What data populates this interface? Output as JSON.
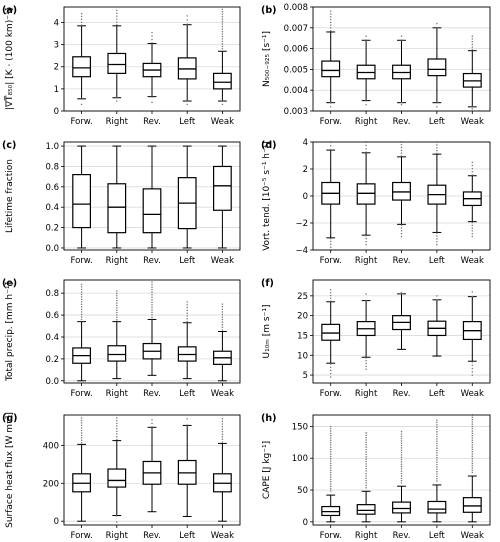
{
  "categories": [
    "Forw.",
    "Right",
    "Rev.",
    "Left",
    "Weak"
  ],
  "chart_data": [
    {
      "type": "boxplot",
      "panel_label": "(a)",
      "ylabel": "|∇T̅₈₅₀| [K · (100 km)⁻¹]",
      "ylim": [
        0,
        4.7
      ],
      "yticks": [
        0,
        1,
        2,
        3,
        4
      ],
      "ytick_labels": [
        "0",
        "1",
        "2",
        "3",
        "4"
      ],
      "grid": true,
      "boxes": [
        {
          "whislo": 0.55,
          "q1": 1.55,
          "med": 1.95,
          "q3": 2.45,
          "whishi": 3.85,
          "outlier_top": 4.4,
          "outlier_bottom": 0.3
        },
        {
          "whislo": 0.6,
          "q1": 1.7,
          "med": 2.1,
          "q3": 2.6,
          "whishi": 3.85,
          "outlier_top": 4.55,
          "outlier_bottom": 0.45
        },
        {
          "whislo": 0.65,
          "q1": 1.55,
          "med": 1.85,
          "q3": 2.15,
          "whishi": 3.05,
          "outlier_top": 3.55,
          "outlier_bottom": 0.4
        },
        {
          "whislo": 0.45,
          "q1": 1.45,
          "med": 1.9,
          "q3": 2.4,
          "whishi": 3.9,
          "outlier_top": 4.3,
          "outlier_bottom": 0.3
        },
        {
          "whislo": 0.45,
          "q1": 1.0,
          "med": 1.3,
          "q3": 1.7,
          "whishi": 2.7,
          "outlier_top": 4.6,
          "outlier_bottom": 0.3
        }
      ]
    },
    {
      "type": "boxplot",
      "panel_label": "(b)",
      "ylabel": "N₅₀₀₋₉₂₅ [s⁻¹]",
      "ylim": [
        0.003,
        0.008
      ],
      "yticks": [
        0.003,
        0.004,
        0.005,
        0.006,
        0.007,
        0.008
      ],
      "ytick_labels": [
        "0.003",
        "0.004",
        "0.005",
        "0.006",
        "0.007",
        "0.008"
      ],
      "grid": true,
      "boxes": [
        {
          "whislo": 0.0034,
          "q1": 0.00465,
          "med": 0.00495,
          "q3": 0.0054,
          "whishi": 0.0068,
          "outlier_top": 0.0078,
          "outlier_bottom": 0.0032
        },
        {
          "whislo": 0.0035,
          "q1": 0.00455,
          "med": 0.00485,
          "q3": 0.0052,
          "whishi": 0.0064,
          "outlier_top": 0.0066,
          "outlier_bottom": 0.0033
        },
        {
          "whislo": 0.0034,
          "q1": 0.00455,
          "med": 0.00485,
          "q3": 0.0052,
          "whishi": 0.0064,
          "outlier_top": 0.0066,
          "outlier_bottom": 0.0033
        },
        {
          "whislo": 0.0034,
          "q1": 0.0047,
          "med": 0.005,
          "q3": 0.0055,
          "whishi": 0.007,
          "outlier_top": 0.0072,
          "outlier_bottom": 0.0032
        },
        {
          "whislo": 0.0032,
          "q1": 0.00415,
          "med": 0.00445,
          "q3": 0.0048,
          "whishi": 0.0059,
          "outlier_top": 0.0066,
          "outlier_bottom": 0.0031
        }
      ]
    },
    {
      "type": "boxplot",
      "panel_label": "(c)",
      "ylabel": "Lifetime fraction",
      "ylim": [
        -0.02,
        1.04
      ],
      "yticks": [
        0,
        0.2,
        0.4,
        0.6,
        0.8,
        1.0
      ],
      "ytick_labels": [
        "0.0",
        "0.2",
        "0.4",
        "0.6",
        "0.8",
        "1.0"
      ],
      "grid": true,
      "boxes": [
        {
          "whislo": 0.0,
          "q1": 0.2,
          "med": 0.43,
          "q3": 0.72,
          "whishi": 1.0,
          "outlier_top": null,
          "outlier_bottom": null
        },
        {
          "whislo": 0.0,
          "q1": 0.15,
          "med": 0.4,
          "q3": 0.63,
          "whishi": 1.0,
          "outlier_top": null,
          "outlier_bottom": null
        },
        {
          "whislo": 0.0,
          "q1": 0.15,
          "med": 0.33,
          "q3": 0.58,
          "whishi": 1.0,
          "outlier_top": null,
          "outlier_bottom": null
        },
        {
          "whislo": 0.0,
          "q1": 0.19,
          "med": 0.44,
          "q3": 0.69,
          "whishi": 1.0,
          "outlier_top": null,
          "outlier_bottom": null
        },
        {
          "whislo": 0.0,
          "q1": 0.37,
          "med": 0.61,
          "q3": 0.8,
          "whishi": 1.0,
          "outlier_top": null,
          "outlier_bottom": null
        }
      ]
    },
    {
      "type": "boxplot",
      "panel_label": "(d)",
      "ylabel": "Vort. tend. [10⁻⁵ s⁻¹ h⁻¹]",
      "ylim": [
        -4,
        4
      ],
      "yticks": [
        -4,
        -2,
        0,
        2,
        4
      ],
      "ytick_labels": [
        "−4",
        "−2",
        "0",
        "2",
        "4"
      ],
      "grid": true,
      "boxes": [
        {
          "whislo": -3.1,
          "q1": -0.6,
          "med": 0.2,
          "q3": 1.0,
          "whishi": 3.4,
          "outlier_top": 4.0,
          "outlier_bottom": -4.0
        },
        {
          "whislo": -2.9,
          "q1": -0.6,
          "med": 0.2,
          "q3": 0.9,
          "whishi": 3.2,
          "outlier_top": 4.0,
          "outlier_bottom": -3.6
        },
        {
          "whislo": -2.1,
          "q1": -0.3,
          "med": 0.3,
          "q3": 1.0,
          "whishi": 2.9,
          "outlier_top": 4.0,
          "outlier_bottom": -3.0
        },
        {
          "whislo": -2.7,
          "q1": -0.6,
          "med": 0.1,
          "q3": 0.8,
          "whishi": 3.1,
          "outlier_top": 4.0,
          "outlier_bottom": -3.6
        },
        {
          "whislo": -1.9,
          "q1": -0.7,
          "med": -0.2,
          "q3": 0.3,
          "whishi": 1.5,
          "outlier_top": 2.5,
          "outlier_bottom": -3.0
        }
      ]
    },
    {
      "type": "boxplot",
      "panel_label": "(e)",
      "ylabel": "Total precip. [mm h⁻¹]",
      "ylim": [
        -0.02,
        0.92
      ],
      "yticks": [
        0,
        0.2,
        0.4,
        0.6,
        0.8
      ],
      "ytick_labels": [
        "0.0",
        "0.2",
        "0.4",
        "0.6",
        "0.8"
      ],
      "grid": true,
      "boxes": [
        {
          "whislo": 0.0,
          "q1": 0.16,
          "med": 0.23,
          "q3": 0.3,
          "whishi": 0.54,
          "outlier_top": 0.88,
          "outlier_bottom": null
        },
        {
          "whislo": 0.02,
          "q1": 0.18,
          "med": 0.24,
          "q3": 0.32,
          "whishi": 0.54,
          "outlier_top": 0.82,
          "outlier_bottom": null
        },
        {
          "whislo": 0.05,
          "q1": 0.2,
          "med": 0.27,
          "q3": 0.34,
          "whishi": 0.56,
          "outlier_top": 0.9,
          "outlier_bottom": null
        },
        {
          "whislo": 0.02,
          "q1": 0.18,
          "med": 0.24,
          "q3": 0.31,
          "whishi": 0.53,
          "outlier_top": 0.72,
          "outlier_bottom": null
        },
        {
          "whislo": 0.0,
          "q1": 0.15,
          "med": 0.21,
          "q3": 0.27,
          "whishi": 0.45,
          "outlier_top": 0.7,
          "outlier_bottom": null
        }
      ]
    },
    {
      "type": "boxplot",
      "panel_label": "(f)",
      "ylabel": "U₁₀ₘ [m s⁻¹]",
      "ylim": [
        3,
        29
      ],
      "yticks": [
        5,
        10,
        15,
        20,
        25
      ],
      "ytick_labels": [
        "5",
        "10",
        "15",
        "20",
        "25"
      ],
      "grid": true,
      "boxes": [
        {
          "whislo": 8.0,
          "q1": 13.8,
          "med": 15.6,
          "q3": 17.8,
          "whishi": 23.5,
          "outlier_top": 26.5,
          "outlier_bottom": 4.5
        },
        {
          "whislo": 9.5,
          "q1": 15.0,
          "med": 16.7,
          "q3": 18.5,
          "whishi": 23.8,
          "outlier_top": 25.5,
          "outlier_bottom": 6.5
        },
        {
          "whislo": 11.5,
          "q1": 16.5,
          "med": 18.3,
          "q3": 20.0,
          "whishi": 25.5,
          "outlier_top": 25.8,
          "outlier_bottom": null
        },
        {
          "whislo": 9.8,
          "q1": 15.0,
          "med": 16.8,
          "q3": 18.6,
          "whishi": 24.0,
          "outlier_top": 25.0,
          "outlier_bottom": null
        },
        {
          "whislo": 8.5,
          "q1": 14.0,
          "med": 16.2,
          "q3": 18.5,
          "whishi": 24.8,
          "outlier_top": 26.0,
          "outlier_bottom": 5.0
        }
      ]
    },
    {
      "type": "boxplot",
      "panel_label": "(g)",
      "ylabel": "Surface heat flux [W m⁻²]",
      "ylim": [
        -20,
        560
      ],
      "yticks": [
        0,
        200,
        400
      ],
      "ytick_labels": [
        "0",
        "200",
        "400"
      ],
      "grid": true,
      "boxes": [
        {
          "whislo": 0.0,
          "q1": 155,
          "med": 200,
          "q3": 250,
          "whishi": 405,
          "outlier_top": 545,
          "outlier_bottom": null
        },
        {
          "whislo": 30,
          "q1": 180,
          "med": 215,
          "q3": 275,
          "whishi": 425,
          "outlier_top": 545,
          "outlier_bottom": -5
        },
        {
          "whislo": 50,
          "q1": 195,
          "med": 255,
          "q3": 315,
          "whishi": 495,
          "outlier_top": 535,
          "outlier_bottom": null
        },
        {
          "whislo": 25,
          "q1": 195,
          "med": 255,
          "q3": 320,
          "whishi": 505,
          "outlier_top": 540,
          "outlier_bottom": null
        },
        {
          "whislo": 0.0,
          "q1": 155,
          "med": 200,
          "q3": 250,
          "whishi": 410,
          "outlier_top": 540,
          "outlier_bottom": null
        }
      ]
    },
    {
      "type": "boxplot",
      "panel_label": "(h)",
      "ylabel": "CAPE [J kg⁻¹]",
      "ylim": [
        -5,
        168
      ],
      "yticks": [
        0,
        50,
        100,
        150
      ],
      "ytick_labels": [
        "0",
        "50",
        "100",
        "150"
      ],
      "grid": true,
      "boxes": [
        {
          "whislo": 0.0,
          "q1": 10,
          "med": 16,
          "q3": 24,
          "whishi": 42,
          "outlier_top": 150,
          "outlier_bottom": null
        },
        {
          "whislo": 0.0,
          "q1": 12,
          "med": 18,
          "q3": 27,
          "whishi": 48,
          "outlier_top": 140,
          "outlier_bottom": null
        },
        {
          "whislo": 0.0,
          "q1": 14,
          "med": 21,
          "q3": 31,
          "whishi": 56,
          "outlier_top": 142,
          "outlier_bottom": null
        },
        {
          "whislo": 0.0,
          "q1": 14,
          "med": 20,
          "q3": 32,
          "whishi": 58,
          "outlier_top": 160,
          "outlier_bottom": null
        },
        {
          "whislo": 0.0,
          "q1": 15,
          "med": 25,
          "q3": 38,
          "whishi": 72,
          "outlier_top": 168,
          "outlier_bottom": null
        }
      ]
    }
  ]
}
